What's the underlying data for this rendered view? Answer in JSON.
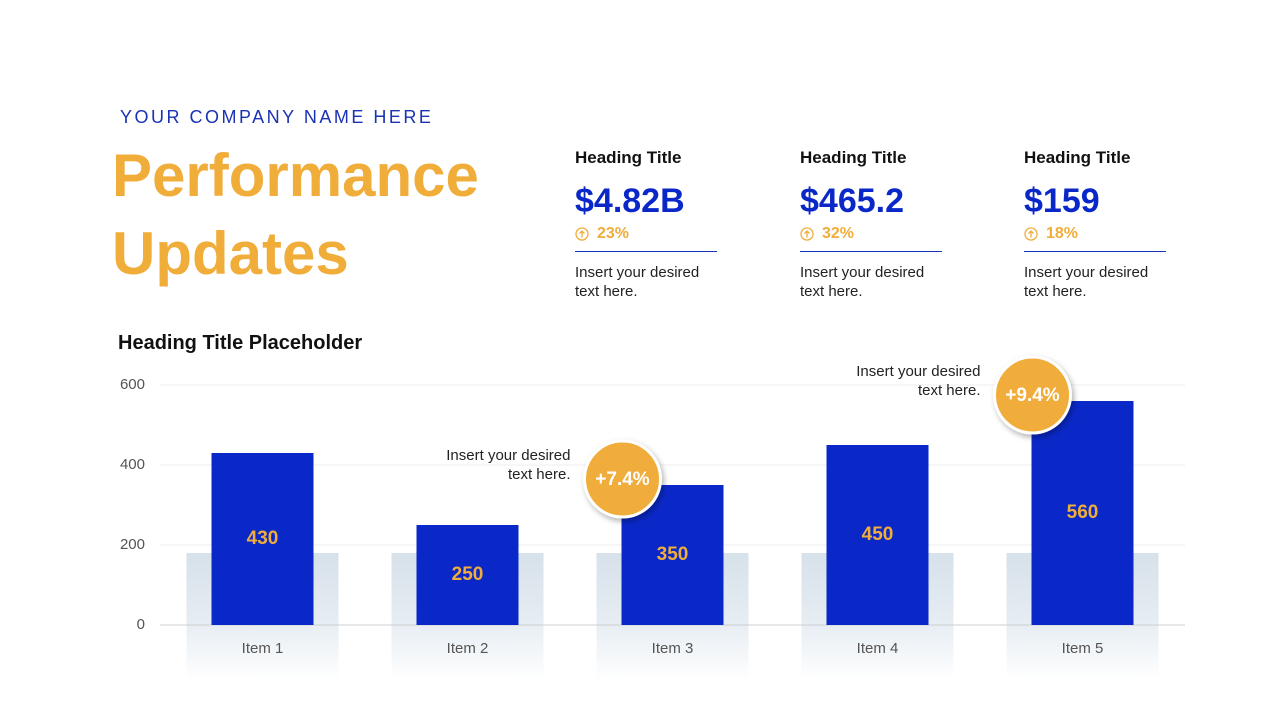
{
  "header": {
    "company": "YOUR COMPANY NAME HERE",
    "title_line1": "Performance",
    "title_line2": "Updates"
  },
  "kpis": [
    {
      "heading": "Heading Title",
      "value": "$4.82B",
      "change": "23%",
      "text": "Insert your desired text here."
    },
    {
      "heading": "Heading Title",
      "value": "$465.2",
      "change": "32%",
      "text": "Insert your desired text here."
    },
    {
      "heading": "Heading Title",
      "value": "$159",
      "change": "18%",
      "text": "Insert your desired text here."
    }
  ],
  "chart_data": {
    "type": "bar",
    "title": "Heading Title Placeholder",
    "categories": [
      "Item 1",
      "Item 2",
      "Item 3",
      "Item 4",
      "Item 5"
    ],
    "values": [
      430,
      250,
      350,
      450,
      560
    ],
    "color": "#0a28c8",
    "ylim": [
      0,
      600
    ],
    "yticks": [
      0,
      200,
      400,
      600
    ],
    "grid": true,
    "annotations": [
      {
        "label": "+7.4%",
        "text": "Insert your desired text here."
      },
      {
        "label": "+9.4%",
        "text": "Insert your desired text here."
      }
    ]
  }
}
